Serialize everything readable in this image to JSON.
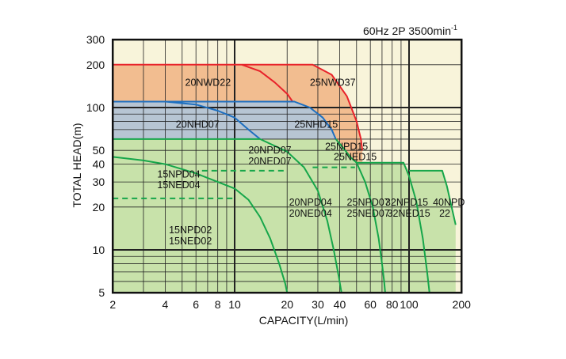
{
  "chart_data": {
    "type": "line",
    "title": "60Hz 2P 3500min",
    "title_sup": "-1",
    "xlabel": "CAPACITY(L/min)",
    "ylabel": "TOTAL HEAD(m)",
    "xscale": "log",
    "yscale": "log",
    "xlim": [
      2,
      200
    ],
    "ylim": [
      5,
      300
    ],
    "grid": true,
    "xticks": [
      2,
      4,
      6,
      8,
      10,
      20,
      30,
      40,
      60,
      80,
      100,
      200
    ],
    "xtick_labels": [
      "2",
      "4",
      "6",
      "8",
      "10",
      "20",
      "30",
      "40",
      "60",
      "80",
      "100",
      "200"
    ],
    "yticks": [
      5,
      10,
      20,
      30,
      40,
      50,
      100,
      200,
      300
    ],
    "ytick_labels": [
      "5",
      "10",
      "20",
      "30",
      "40",
      "50",
      "100",
      "200",
      "300"
    ],
    "colors": {
      "background": "#f8f4da",
      "nwd_fill": "#f2bd90",
      "nhd_fill": "#b7c5d3",
      "npd_fill": "#c8e2aa",
      "nwd_line": "#e8222a",
      "nhd_line": "#1d6fc0",
      "npd_line": "#16a64a",
      "grid": "#222222"
    },
    "regions": [
      {
        "name": "NWD",
        "fill": "nwd_fill",
        "points": [
          [
            2,
            200
          ],
          [
            28,
            200
          ],
          [
            36,
            170
          ],
          [
            44,
            120
          ],
          [
            50,
            80
          ],
          [
            53,
            60
          ],
          [
            54,
            50
          ],
          [
            54,
            38
          ],
          [
            2,
            38
          ]
        ]
      },
      {
        "name": "NHD",
        "fill": "nhd_fill",
        "points": [
          [
            2,
            110
          ],
          [
            22,
            110
          ],
          [
            27,
            100
          ],
          [
            32,
            85
          ],
          [
            36,
            70
          ],
          [
            38,
            60
          ],
          [
            2,
            60
          ]
        ]
      },
      {
        "name": "NPD",
        "fill": "npd_fill",
        "points": [
          [
            2,
            60
          ],
          [
            38,
            60
          ],
          [
            42,
            52
          ],
          [
            46,
            45
          ],
          [
            50,
            41
          ],
          [
            93,
            41
          ],
          [
            100,
            36
          ],
          [
            155,
            36
          ],
          [
            165,
            28
          ],
          [
            185,
            15
          ],
          [
            185,
            5
          ],
          [
            2,
            5
          ]
        ]
      }
    ],
    "series": [
      {
        "name": "20NWD22",
        "color": "nwd_line",
        "dash": false,
        "points": [
          [
            11,
            200
          ],
          [
            14,
            180
          ],
          [
            17,
            150
          ],
          [
            20,
            125
          ],
          [
            21.5,
            110
          ]
        ]
      },
      {
        "name": "25NWD37",
        "color": "nwd_line",
        "dash": false,
        "points": [
          [
            2,
            200
          ],
          [
            28,
            200
          ],
          [
            36,
            170
          ],
          [
            44,
            120
          ],
          [
            50,
            80
          ],
          [
            53,
            60
          ],
          [
            54,
            50
          ]
        ]
      },
      {
        "name": "20NHD07",
        "color": "nhd_line",
        "dash": false,
        "points": [
          [
            4,
            110
          ],
          [
            6,
            105
          ],
          [
            8,
            95
          ],
          [
            10,
            85
          ],
          [
            12,
            70
          ],
          [
            14,
            60
          ]
        ]
      },
      {
        "name": "25NHD15",
        "color": "nhd_line",
        "dash": false,
        "points": [
          [
            2,
            110
          ],
          [
            22,
            110
          ],
          [
            27,
            100
          ],
          [
            32,
            85
          ],
          [
            36,
            70
          ],
          [
            38,
            60
          ]
        ]
      },
      {
        "name": "15NPD04",
        "color": "npd_line",
        "dash": false,
        "points": [
          [
            2,
            45
          ],
          [
            3,
            42.5
          ],
          [
            4,
            40
          ],
          [
            6,
            34.5
          ],
          [
            8,
            30
          ],
          [
            10,
            27
          ],
          [
            12,
            22.5
          ],
          [
            14,
            17
          ],
          [
            16,
            12
          ],
          [
            18,
            8
          ],
          [
            19.5,
            5.8
          ],
          [
            20,
            5
          ]
        ]
      },
      {
        "name": "15NPD02",
        "color": "npd_line",
        "dash": true,
        "points": [
          [
            2,
            23
          ],
          [
            10,
            23
          ]
        ]
      },
      {
        "name": "20NPD07",
        "color": "npd_line",
        "dash": false,
        "points": [
          [
            2,
            60
          ],
          [
            14,
            60
          ],
          [
            20,
            49
          ],
          [
            25,
            38
          ],
          [
            30,
            26
          ],
          [
            34,
            16
          ],
          [
            37,
            10
          ],
          [
            39.5,
            6.5
          ],
          [
            41,
            5
          ]
        ]
      },
      {
        "name": "20NPD04",
        "color": "npd_line",
        "dash": true,
        "points": [
          [
            6.5,
            36
          ],
          [
            20,
            36
          ]
        ]
      },
      {
        "name": "25NPD15",
        "color": "npd_line",
        "dash": false,
        "points": [
          [
            38,
            60
          ],
          [
            42,
            52
          ],
          [
            46,
            45
          ],
          [
            50,
            41
          ],
          [
            56,
            30
          ],
          [
            62,
            20
          ],
          [
            67,
            12
          ],
          [
            70,
            8
          ],
          [
            72,
            6
          ],
          [
            73,
            5
          ]
        ]
      },
      {
        "name": "25NPD07",
        "color": "npd_line",
        "dash": true,
        "points": [
          [
            28,
            38
          ],
          [
            49,
            38
          ]
        ]
      },
      {
        "name": "32NPD15",
        "color": "npd_line",
        "dash": false,
        "points": [
          [
            50,
            41
          ],
          [
            93,
            41
          ],
          [
            100,
            33
          ],
          [
            110,
            22
          ],
          [
            120,
            12
          ],
          [
            127,
            7
          ],
          [
            131,
            5
          ]
        ]
      },
      {
        "name": "40NPD22",
        "color": "npd_line",
        "dash": false,
        "points": [
          [
            100,
            36
          ],
          [
            155,
            36
          ],
          [
            165,
            28
          ],
          [
            185,
            15
          ]
        ]
      }
    ],
    "annotations": [
      {
        "text": "20NWD22",
        "x": 5.2,
        "y": 150
      },
      {
        "text": "25NWD37",
        "x": 27,
        "y": 150
      },
      {
        "text": "20NHD07",
        "x": 4.6,
        "y": 76
      },
      {
        "text": "25NHD15",
        "x": 22,
        "y": 76
      },
      {
        "text": "20NPD07",
        "x": 12,
        "y": 50
      },
      {
        "text": "20NED07",
        "x": 12,
        "y": 42
      },
      {
        "text": "25NPD15",
        "x": 33,
        "y": 53
      },
      {
        "text": "25NED15",
        "x": 37,
        "y": 45
      },
      {
        "text": "15NPD04",
        "x": 3.6,
        "y": 34
      },
      {
        "text": "15NED04",
        "x": 3.6,
        "y": 28.5
      },
      {
        "text": "20NPD04",
        "x": 20.5,
        "y": 21.5
      },
      {
        "text": "20NED04",
        "x": 20.5,
        "y": 18
      },
      {
        "text": "25NPD07",
        "x": 44,
        "y": 21.5
      },
      {
        "text": "25NED07",
        "x": 44,
        "y": 18
      },
      {
        "text": "32NPD15",
        "x": 73,
        "y": 21.5
      },
      {
        "text": "32NED15",
        "x": 75,
        "y": 18
      },
      {
        "text": "40NPD",
        "x": 137,
        "y": 21.5
      },
      {
        "text": "22",
        "x": 149,
        "y": 18
      },
      {
        "text": "15NPD02",
        "x": 4.2,
        "y": 13.8
      },
      {
        "text": "15NED02",
        "x": 4.2,
        "y": 11.5
      }
    ]
  }
}
